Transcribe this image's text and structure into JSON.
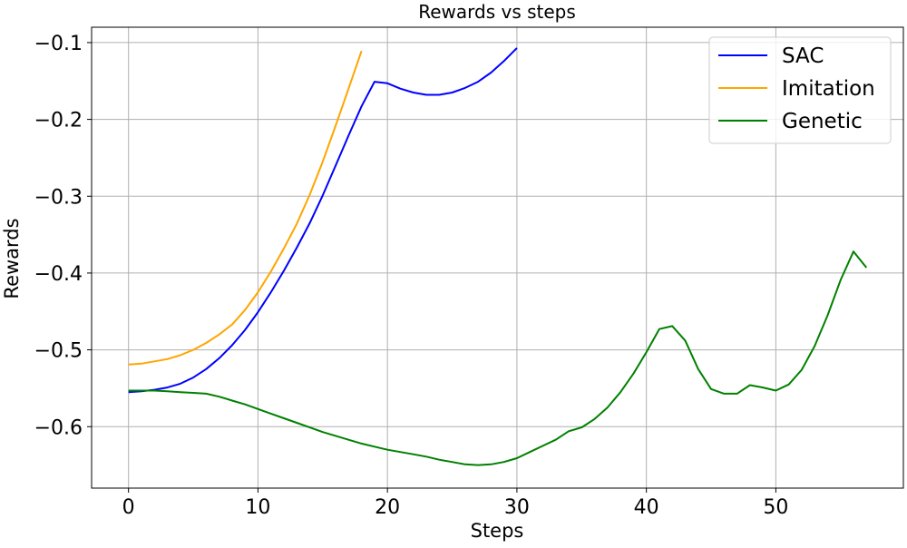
{
  "chart_data": {
    "type": "line",
    "title": "Rewards vs steps",
    "xlabel": "Steps",
    "ylabel": "Rewards",
    "xlim": [
      -2.85,
      59.85
    ],
    "ylim": [
      -0.68,
      -0.08
    ],
    "xticks": [
      0,
      10,
      20,
      30,
      40,
      50
    ],
    "xtick_labels": [
      "0",
      "10",
      "20",
      "30",
      "40",
      "50"
    ],
    "yticks": [
      -0.6,
      -0.5,
      -0.4,
      -0.3,
      -0.2,
      -0.1
    ],
    "ytick_labels": [
      "−0.6",
      "−0.5",
      "−0.4",
      "−0.3",
      "−0.2",
      "−0.1"
    ],
    "grid": true,
    "legend_position": "top-right",
    "series": [
      {
        "name": "SAC",
        "color": "#0000ff",
        "x": [
          0,
          1,
          2,
          3,
          4,
          5,
          6,
          7,
          8,
          9,
          10,
          11,
          12,
          13,
          14,
          15,
          16,
          17,
          18,
          19,
          20,
          21,
          22,
          23,
          24,
          25,
          26,
          27,
          28,
          29,
          30
        ],
        "y": [
          -0.555,
          -0.554,
          -0.552,
          -0.549,
          -0.544,
          -0.536,
          -0.525,
          -0.511,
          -0.494,
          -0.474,
          -0.451,
          -0.425,
          -0.397,
          -0.367,
          -0.335,
          -0.299,
          -0.26,
          -0.221,
          -0.183,
          -0.151,
          -0.153,
          -0.16,
          -0.165,
          -0.168,
          -0.168,
          -0.165,
          -0.159,
          -0.151,
          -0.139,
          -0.124,
          -0.107
        ]
      },
      {
        "name": "Imitation",
        "color": "#ffa500",
        "x": [
          0,
          1,
          2,
          3,
          4,
          5,
          6,
          7,
          8,
          9,
          10,
          11,
          12,
          13,
          14,
          15,
          16,
          17,
          18
        ],
        "y": [
          -0.519,
          -0.518,
          -0.515,
          -0.512,
          -0.507,
          -0.5,
          -0.491,
          -0.48,
          -0.467,
          -0.448,
          -0.425,
          -0.398,
          -0.368,
          -0.336,
          -0.298,
          -0.255,
          -0.208,
          -0.16,
          -0.111
        ]
      },
      {
        "name": "Genetic",
        "color": "#008000",
        "x": [
          0,
          1,
          2,
          3,
          4,
          5,
          6,
          7,
          8,
          9,
          10,
          11,
          12,
          13,
          14,
          15,
          16,
          17,
          18,
          19,
          20,
          21,
          22,
          23,
          24,
          25,
          26,
          27,
          28,
          29,
          30,
          31,
          32,
          33,
          34,
          35,
          36,
          37,
          38,
          39,
          40,
          41,
          42,
          43,
          44,
          45,
          46,
          47,
          48,
          49,
          50,
          51,
          52,
          53,
          54,
          55,
          56,
          57
        ],
        "y": [
          -0.553,
          -0.553,
          -0.553,
          -0.554,
          -0.555,
          -0.556,
          -0.557,
          -0.561,
          -0.566,
          -0.571,
          -0.577,
          -0.583,
          -0.589,
          -0.595,
          -0.601,
          -0.607,
          -0.612,
          -0.617,
          -0.622,
          -0.626,
          -0.63,
          -0.633,
          -0.636,
          -0.639,
          -0.643,
          -0.646,
          -0.649,
          -0.65,
          -0.649,
          -0.646,
          -0.641,
          -0.633,
          -0.625,
          -0.617,
          -0.606,
          -0.601,
          -0.59,
          -0.575,
          -0.555,
          -0.531,
          -0.503,
          -0.473,
          -0.469,
          -0.488,
          -0.525,
          -0.551,
          -0.557,
          -0.557,
          -0.546,
          -0.549,
          -0.553,
          -0.545,
          -0.526,
          -0.495,
          -0.455,
          -0.409,
          -0.372,
          -0.393
        ]
      }
    ]
  }
}
